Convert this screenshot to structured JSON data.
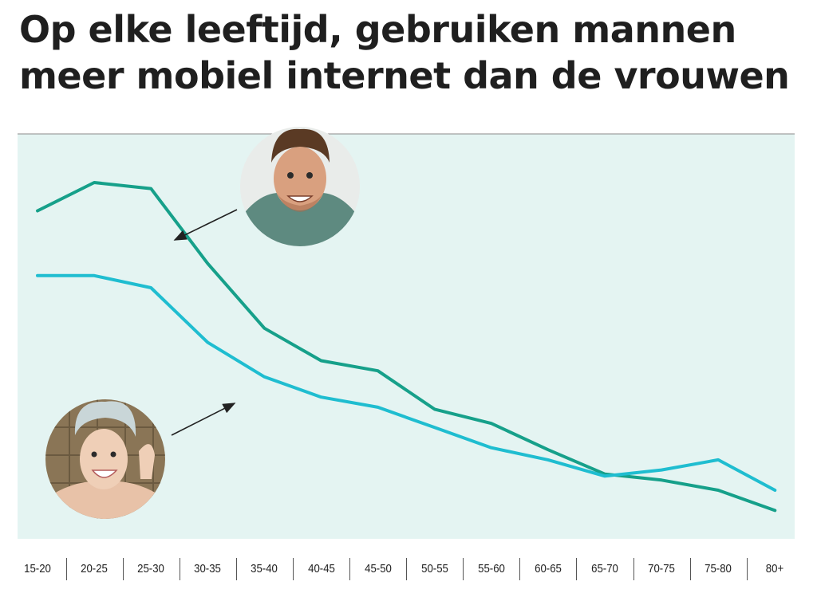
{
  "title": {
    "line1": "Op elke leeftijd, gebruiken mannen",
    "line2": "meer mobiel internet dan de vrouwen"
  },
  "colors": {
    "background": "#e4f4f2",
    "men_line": "#16a08a",
    "women_line": "#1fbdd0",
    "axis_text": "#222222"
  },
  "chart_data": {
    "type": "line",
    "categories": [
      "15-20",
      "20-25",
      "25-30",
      "30-35",
      "35-40",
      "40-45",
      "45-50",
      "50-55",
      "55-60",
      "60-65",
      "65-70",
      "70-75",
      "75-80",
      "80+"
    ],
    "series": [
      {
        "values": [
          81,
          88,
          86.5,
          68,
          52,
          44,
          41.5,
          32,
          28.5,
          22,
          16,
          14.5,
          12,
          7
        ],
        "color": "#16a08a",
        "icon": "man-avatar"
      },
      {
        "values": [
          65,
          65,
          62,
          48.5,
          40,
          35,
          32.5,
          27.5,
          22.5,
          19.5,
          15.5,
          17,
          19.5,
          12
        ],
        "color": "#1fbdd0",
        "icon": "woman-avatar"
      }
    ],
    "ylim": [
      0,
      100
    ],
    "grid": false,
    "yaxis_visible": false
  }
}
